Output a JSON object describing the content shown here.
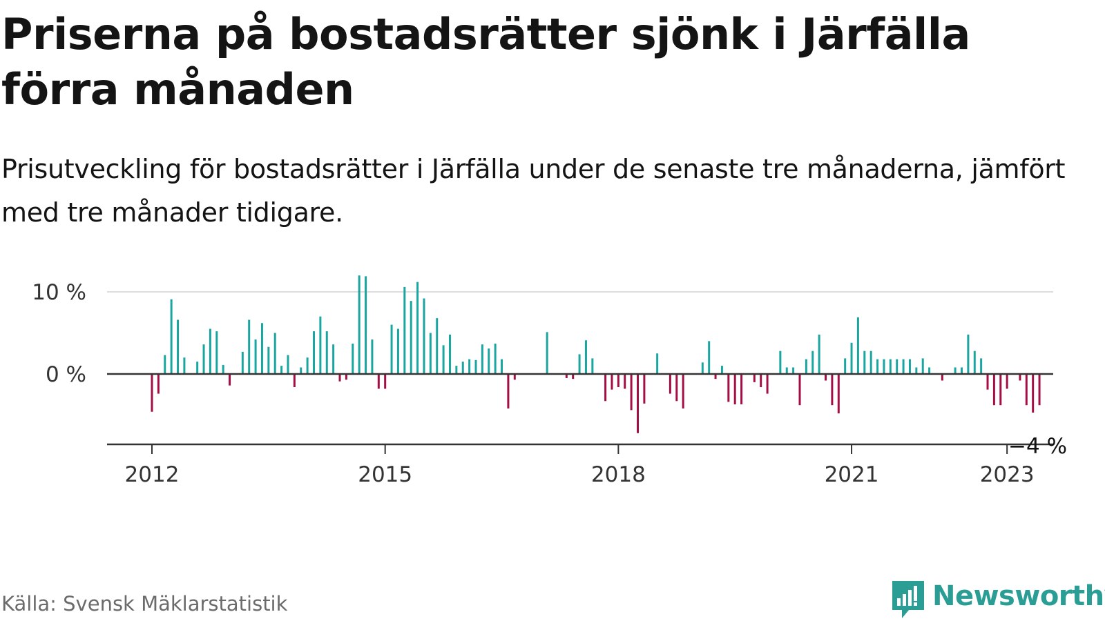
{
  "title": "Priserna på bostadsrätter sjönk i Järfälla förra månaden",
  "subtitle": "Prisutveckling för bostadsrätter i Järfälla under de senaste tre månaderna, jämfört med tre månader tidigare.",
  "source": "Källa: Svensk Mäklarstatistik",
  "brand": "Newsworthy",
  "brand_icon": "newsworthy-logo-icon",
  "colors": {
    "positive": "#1aa6a0",
    "negative": "#a50e45",
    "axis": "#333333",
    "grid": "#dddddd"
  },
  "chart_data": {
    "type": "bar",
    "title": "",
    "xlabel": "",
    "ylabel": "",
    "ylim": [
      -9,
      12
    ],
    "grid": true,
    "y_ticks": [
      {
        "value": 0,
        "label": "0 %"
      },
      {
        "value": 10,
        "label": "10 %"
      }
    ],
    "x_ticks": [
      {
        "value": "2012-01",
        "label": "2012"
      },
      {
        "value": "2015-01",
        "label": "2015"
      },
      {
        "value": "2018-01",
        "label": "2018"
      },
      {
        "value": "2021-01",
        "label": "2021"
      },
      {
        "value": "2023-01",
        "label": "2023"
      }
    ],
    "last_value_label": "−4 %",
    "start": "2012-01",
    "values": [
      -4.6,
      -2.4,
      2.3,
      9.1,
      6.6,
      2.0,
      0.0,
      1.5,
      3.6,
      5.5,
      5.2,
      1.1,
      -1.4,
      0.0,
      2.7,
      6.6,
      4.2,
      6.2,
      3.3,
      5.0,
      1.0,
      2.3,
      -1.6,
      0.8,
      2.0,
      5.2,
      7.0,
      5.2,
      3.6,
      -0.9,
      -0.7,
      3.7,
      12.0,
      11.9,
      4.2,
      -1.8,
      -1.8,
      6.0,
      5.5,
      10.6,
      8.9,
      11.2,
      9.2,
      5.0,
      6.8,
      3.5,
      4.8,
      1.0,
      1.5,
      1.8,
      1.7,
      3.6,
      3.1,
      3.7,
      1.8,
      -4.2,
      -0.7,
      0.0,
      0.0,
      0.0,
      0.0,
      5.1,
      0.0,
      0.0,
      -0.5,
      -0.6,
      2.4,
      4.1,
      1.9,
      0.0,
      -3.3,
      -1.9,
      -1.6,
      -1.8,
      -4.4,
      -7.2,
      -3.6,
      0.0,
      2.5,
      0.0,
      -2.4,
      -3.3,
      -4.2,
      0.0,
      0.0,
      1.4,
      4.0,
      -0.6,
      1.0,
      -3.4,
      -3.7,
      -3.7,
      0.0,
      -1.0,
      -1.6,
      -2.4,
      0.0,
      2.8,
      0.8,
      0.8,
      -3.8,
      1.8,
      2.8,
      4.8,
      -0.8,
      -3.8,
      -4.8,
      1.9,
      3.8,
      6.9,
      2.8,
      2.8,
      1.8,
      1.8,
      1.8,
      1.8,
      1.8,
      1.8,
      0.8,
      1.9,
      0.8,
      0.0,
      -0.8,
      0.0,
      0.8,
      0.8,
      4.8,
      2.8,
      1.9,
      -1.9,
      -3.8,
      -3.8,
      -1.8,
      0.0,
      -0.8,
      -3.8,
      -4.7,
      -3.8
    ]
  }
}
